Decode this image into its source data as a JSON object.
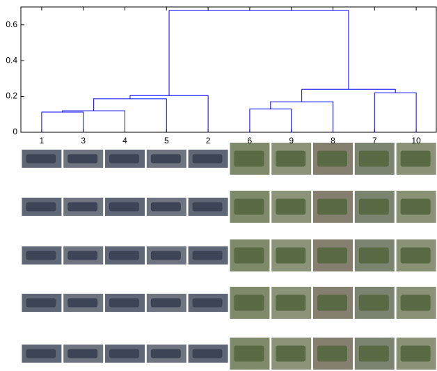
{
  "chart_data": {
    "type": "dendrogram",
    "leaves": [
      "1",
      "3",
      "4",
      "5",
      "2",
      "6",
      "9",
      "8",
      "7",
      "10"
    ],
    "merges": [
      [
        0,
        1,
        0.113
      ],
      [
        10,
        2,
        0.12
      ],
      [
        11,
        3,
        0.187
      ],
      [
        12,
        4,
        0.205
      ],
      [
        5,
        6,
        0.13
      ],
      [
        14,
        7,
        0.17
      ],
      [
        8,
        9,
        0.22
      ],
      [
        15,
        16,
        0.24
      ],
      [
        13,
        17,
        0.68
      ]
    ],
    "color": "#0000ff",
    "ylim": [
      0,
      0.7
    ],
    "yticks": [
      0,
      0.2,
      0.4,
      0.6
    ]
  }
}
